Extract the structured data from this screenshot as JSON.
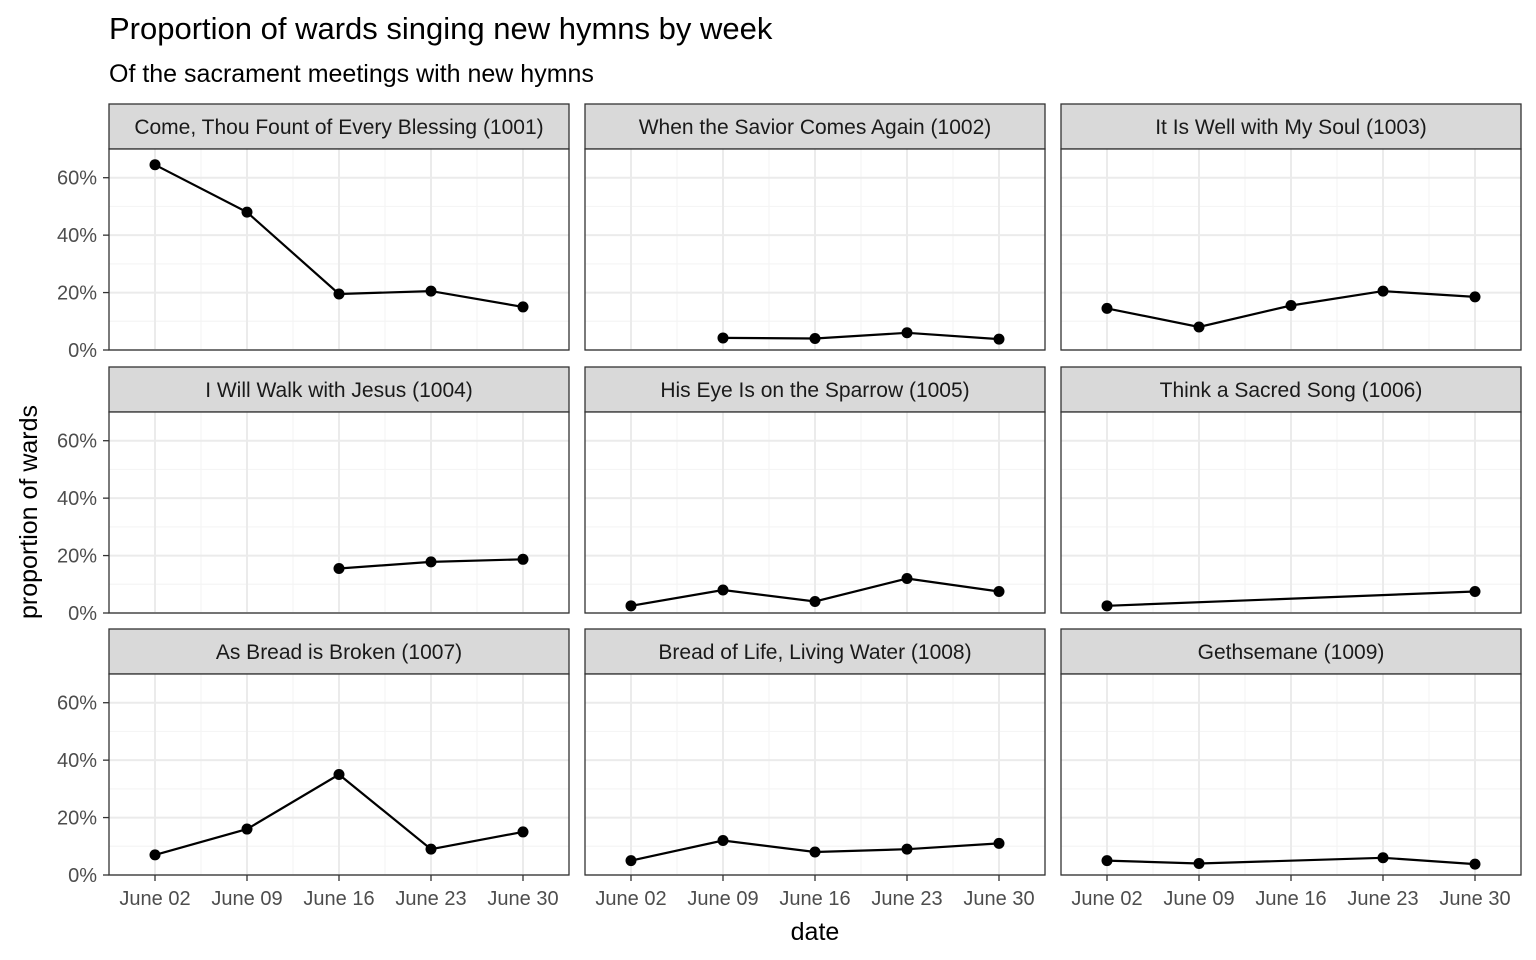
{
  "chart_data": {
    "type": "line",
    "title": "Proportion of wards singing new hymns by week",
    "subtitle": "Of the sacrament meetings with new hymns",
    "xlabel": "date",
    "ylabel": "proportion of wards",
    "x": [
      "June 02",
      "June 09",
      "June 16",
      "June 23",
      "June 30"
    ],
    "y_ticks": [
      "0%",
      "20%",
      "40%",
      "60%"
    ],
    "y_tick_values": [
      0,
      20,
      40,
      60
    ],
    "ylim": [
      0,
      70
    ],
    "grid": true,
    "colors": {
      "line": "#000000",
      "point": "#000000",
      "strip_fill": "#d9d9d9",
      "border": "#333333",
      "grid_major": "#ebebeb",
      "grid_minor": "#f5f5f5"
    },
    "panels": [
      {
        "name": "Come, Thou Fount of Every Blessing (1001)",
        "values": [
          64.5,
          48.0,
          19.5,
          20.5,
          15.0
        ]
      },
      {
        "name": "When the Savior Comes Again (1002)",
        "values": [
          null,
          4.2,
          4.0,
          6.0,
          3.8
        ]
      },
      {
        "name": "It Is Well with My Soul (1003)",
        "values": [
          14.5,
          8.0,
          15.5,
          20.5,
          18.5
        ]
      },
      {
        "name": "I Will Walk with Jesus (1004)",
        "values": [
          null,
          null,
          15.5,
          17.8,
          18.7
        ]
      },
      {
        "name": "His Eye Is on the Sparrow (1005)",
        "values": [
          2.5,
          8.0,
          4.0,
          12.0,
          7.5
        ]
      },
      {
        "name": "Think a Sacred Song (1006)",
        "values": [
          2.5,
          null,
          null,
          null,
          7.5
        ]
      },
      {
        "name": "As Bread is Broken (1007)",
        "values": [
          7.0,
          16.0,
          35.0,
          9.0,
          15.0
        ]
      },
      {
        "name": "Bread of Life, Living Water (1008)",
        "values": [
          5.0,
          12.0,
          8.0,
          9.0,
          11.0
        ]
      },
      {
        "name": "Gethsemane (1009)",
        "values": [
          5.0,
          4.0,
          null,
          6.0,
          3.8
        ]
      }
    ]
  }
}
